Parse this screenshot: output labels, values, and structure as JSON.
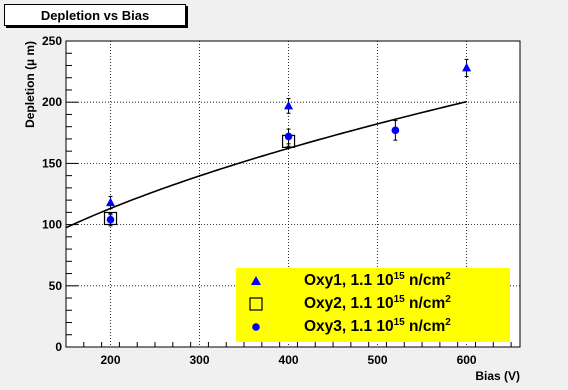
{
  "chart_data": {
    "type": "scatter",
    "title": "Depletion vs Bias",
    "xlabel": "Bias (V)",
    "ylabel": "Depletion (µ m)",
    "xlim": [
      150,
      660
    ],
    "ylim": [
      0,
      250
    ],
    "x_ticks": [
      200,
      300,
      400,
      500,
      600
    ],
    "y_ticks": [
      0,
      50,
      100,
      150,
      200,
      250
    ],
    "grid": true,
    "legend_position": "bottom-right",
    "series": [
      {
        "name": "Oxy1, 1.1 10^15 n/cm^2",
        "marker": "triangle",
        "color": "#0000ff",
        "points": [
          {
            "x": 200,
            "y": 118,
            "err": 5
          },
          {
            "x": 400,
            "y": 197,
            "err": 6
          },
          {
            "x": 600,
            "y": 228,
            "err": 7
          }
        ]
      },
      {
        "name": "Oxy2, 1.1 10^15 n/cm^2",
        "marker": "open-square",
        "color": "#000000",
        "points": [
          {
            "x": 200,
            "y": 105,
            "err": 3
          },
          {
            "x": 400,
            "y": 168,
            "err": 4
          }
        ]
      },
      {
        "name": "Oxy3, 1.1 10^15 n/cm^2",
        "marker": "circle",
        "color": "#0000ff",
        "points": [
          {
            "x": 200,
            "y": 104,
            "err": 5
          },
          {
            "x": 400,
            "y": 172,
            "err": 6
          },
          {
            "x": 520,
            "y": 177,
            "err": 8
          }
        ]
      }
    ],
    "fit_curve": {
      "type": "power",
      "a": 7.2,
      "p": 0.52
    }
  },
  "legend": {
    "items": [
      {
        "prefix": "Oxy1, 1.1 10",
        "exp": "15",
        "mid": " n/cm",
        "exp2": "2"
      },
      {
        "prefix": "Oxy2, 1.1 10",
        "exp": "15",
        "mid": " n/cm",
        "exp2": "2"
      },
      {
        "prefix": "Oxy3, 1.1 10",
        "exp": "15",
        "mid": " n/cm",
        "exp2": "2"
      }
    ]
  }
}
